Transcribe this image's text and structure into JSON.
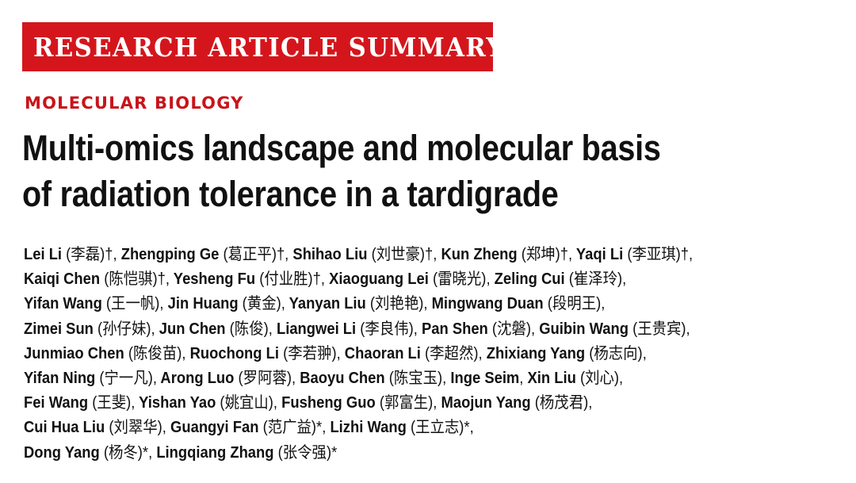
{
  "banner": {
    "label": "RESEARCH ARTICLE SUMMARY"
  },
  "section": {
    "label": "MOLECULAR BIOLOGY"
  },
  "title": {
    "line1": "Multi-omics landscape and molecular basis",
    "line2": "of radiation tolerance in a tardigrade"
  },
  "authors": {
    "lines": [
      "Lei Li (李磊)†, Zhengping Ge (葛正平)†, Shihao Liu (刘世豪)†, Kun Zheng (郑坤)†, Yaqi Li (李亚琪)†,",
      "Kaiqi Chen (陈恺骐)†, Yesheng Fu (付业胜)†, Xiaoguang Lei (雷晓光), Zeling Cui (崔泽玲),",
      "Yifan Wang (王一帆), Jin Huang (黄金), Yanyan Liu (刘艳艳), Mingwang Duan (段明王),",
      "Zimei Sun (孙仔妹), Jun Chen (陈俊), Liangwei Li (李良伟), Pan Shen (沈磐), Guibin Wang (王贵宾),",
      "Junmiao Chen (陈俊苗), Ruochong Li (李若翀), Chaoran Li (李超然), Zhixiang Yang (杨志向),",
      "Yifan Ning (宁一凡), Arong Luo (罗阿蓉), Baoyu Chen (陈宝玉), Inge Seim, Xin Liu (刘心),",
      "Fei Wang (王斐), Yishan Yao (姚宜山), Fusheng Guo (郭富生), Maojun Yang (杨茂君),",
      "Cui Hua Liu (刘翠华), Guangyi Fan (范广益)*, Lizhi Wang (王立志)*,",
      "Dong Yang (杨冬)*, Lingqiang Zhang (张令强)*"
    ]
  }
}
